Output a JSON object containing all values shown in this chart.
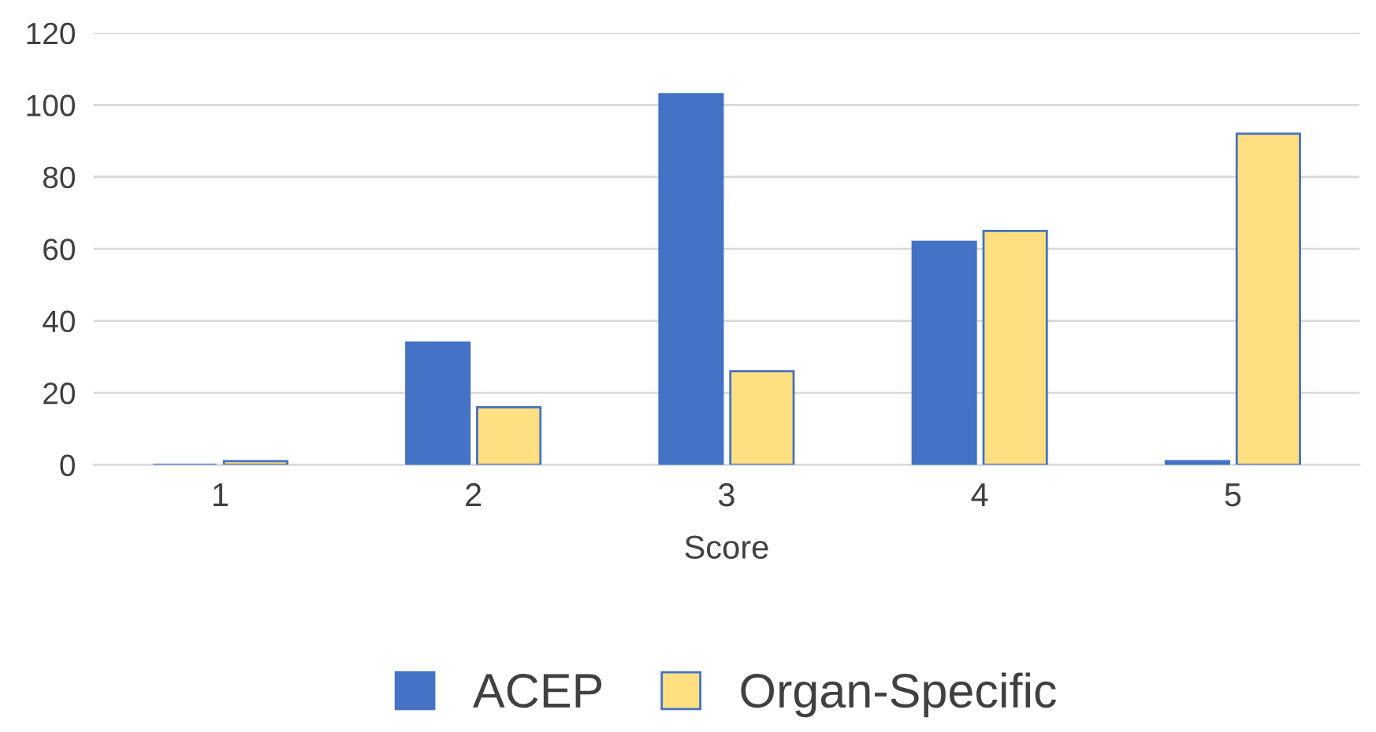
{
  "chart_data": {
    "type": "bar",
    "xlabel": "Score",
    "categories": [
      "1",
      "2",
      "3",
      "4",
      "5"
    ],
    "series": [
      {
        "name": "ACEP",
        "color": "#4472c4",
        "values": [
          0,
          34,
          103,
          62,
          1
        ]
      },
      {
        "name": "Organ-Specific",
        "color": "#ffdf80",
        "values": [
          1,
          16,
          26,
          65,
          92
        ]
      }
    ],
    "ylim": [
      0,
      120
    ],
    "yticks": [
      0,
      20,
      40,
      60,
      80,
      100,
      120
    ],
    "grid": "y",
    "legend": "bottom"
  }
}
